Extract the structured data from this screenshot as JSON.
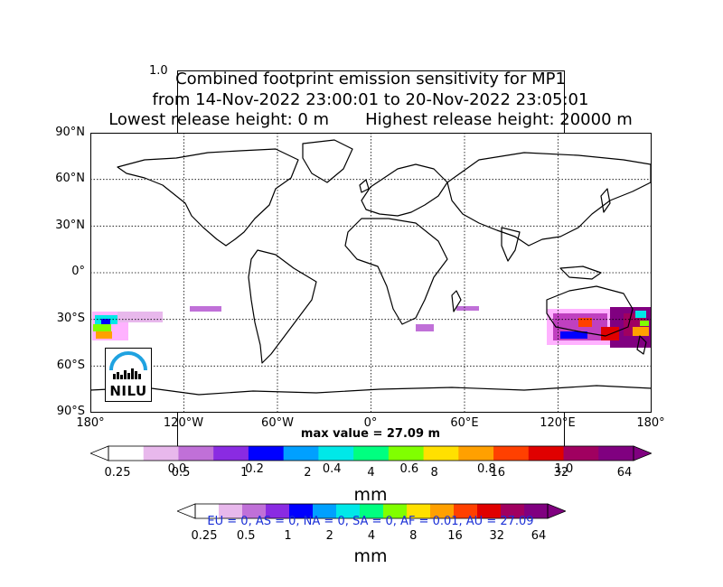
{
  "figure": {
    "title_line1": "Combined footprint emission sensitivity for MP1",
    "title_line2": "from 14-Nov-2022 23:00:01 to 20-Nov-2022 23:05:01",
    "title_line3": "Lowest release height: 0 m       Highest release height: 20000 m",
    "corner_label": "1.0",
    "max_value_text": "max value = 27.09 m"
  },
  "map": {
    "lat_labels": [
      "90°N",
      "60°N",
      "30°N",
      "0°",
      "30°S",
      "60°S",
      "90°S"
    ],
    "lon_labels": [
      "180°",
      "120°W",
      "60°W",
      "0°",
      "60°E",
      "120°E",
      "180°"
    ],
    "logo_text": "NILU",
    "colors": {
      "land_outline": "#000000",
      "grid": "#000000"
    }
  },
  "ghost_axis": {
    "ticks": [
      "0.0",
      "0.2",
      "0.4",
      "0.6",
      "0.8",
      "1.0"
    ]
  },
  "colorbar": {
    "ticks": [
      "0.25",
      "0.5",
      "1",
      "2",
      "4",
      "8",
      "16",
      "32",
      "64"
    ],
    "units": "mm",
    "colors": [
      "#ffffff",
      "#e8b8ec",
      "#c070d8",
      "#8a2be2",
      "#0000ff",
      "#00a0ff",
      "#00e8e8",
      "#00ff80",
      "#80ff00",
      "#ffe000",
      "#ffa000",
      "#ff4000",
      "#e00000",
      "#a00060",
      "#800080"
    ]
  },
  "colorbar2": {
    "ticks": [
      "0.25",
      "0.5",
      "1",
      "2",
      "4",
      "8",
      "16",
      "32",
      "64"
    ],
    "units": "mm"
  },
  "region_totals": "EU = 0,  AS = 0,  NA = 0,  SA = 0,  AF = 0.01,  AU = 27.09",
  "chart_data": {
    "type": "heatmap",
    "title": "Combined footprint emission sensitivity for MP1",
    "xlabel": "",
    "ylabel": "",
    "x_ticks": [
      "180°",
      "120°W",
      "60°W",
      "0°",
      "60°E",
      "120°E",
      "180°"
    ],
    "y_ticks": [
      "90°N",
      "60°N",
      "30°N",
      "0°",
      "30°S",
      "60°S",
      "90°S"
    ],
    "xlim": [
      -180,
      180
    ],
    "ylim": [
      -90,
      90
    ],
    "grid": true,
    "max_value": 27.09,
    "colorbar_levels": [
      0.25,
      0.5,
      1,
      2,
      4,
      8,
      16,
      32,
      64
    ],
    "regions": [
      {
        "name": "EU",
        "value": 0
      },
      {
        "name": "AS",
        "value": 0
      },
      {
        "name": "NA",
        "value": 0
      },
      {
        "name": "SA",
        "value": 0
      },
      {
        "name": "AF",
        "value": 0.01
      },
      {
        "name": "AU",
        "value": 27.09
      }
    ]
  }
}
